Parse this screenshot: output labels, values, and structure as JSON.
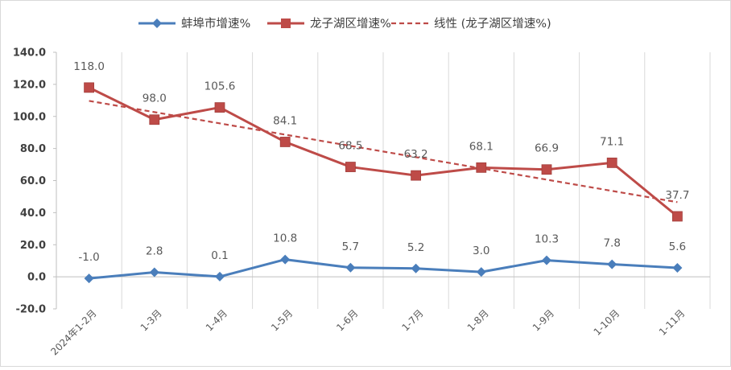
{
  "chart_data": {
    "type": "line",
    "categories": [
      "2024年1-2月",
      "1-3月",
      "1-4月",
      "1-5月",
      "1-6月",
      "1-7月",
      "1-8月",
      "1-9月",
      "1-10月",
      "1-11月"
    ],
    "series": [
      {
        "name": "蚌埠市增速%",
        "values": [
          -1.0,
          2.8,
          0.1,
          10.8,
          5.7,
          5.2,
          3.0,
          10.3,
          7.8,
          5.6
        ],
        "color": "#4A7EBB",
        "marker": "diamond"
      },
      {
        "name": "龙子湖区增速%",
        "values": [
          118.0,
          98.0,
          105.6,
          84.1,
          68.5,
          63.2,
          68.1,
          66.9,
          71.1,
          37.7
        ],
        "color": "#BE4B48",
        "marker": "square"
      }
    ],
    "trendline": {
      "name": "线性 (龙子湖区增速%)",
      "of_series": "龙子湖区增速%",
      "style": "dashed",
      "color": "#BE4B48"
    },
    "ylim": [
      -20,
      140
    ],
    "yticks": [
      "-20.0",
      "0.0",
      "20.0",
      "40.0",
      "60.0",
      "80.0",
      "100.0",
      "120.0",
      "140.0"
    ],
    "grid": "vertical",
    "legend_position": "top"
  }
}
